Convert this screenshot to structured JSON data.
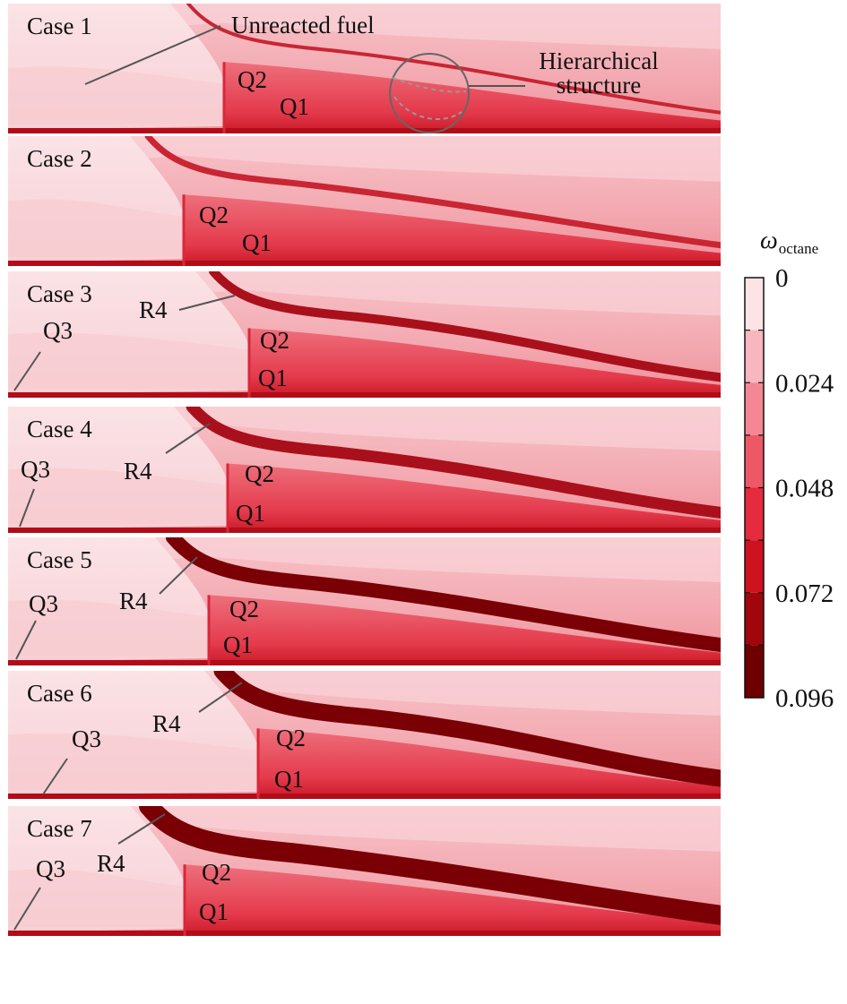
{
  "panels": [
    {
      "case": "Case 1",
      "labels": {
        "q1": "Q1",
        "q2": "Q2"
      },
      "annotations": [
        "Unreacted fuel",
        "Hierarchical",
        "structure"
      ]
    },
    {
      "case": "Case 2",
      "labels": {
        "q1": "Q1",
        "q2": "Q2"
      }
    },
    {
      "case": "Case 3",
      "labels": {
        "q1": "Q1",
        "q2": "Q2",
        "q3": "Q3",
        "r4": "R4"
      }
    },
    {
      "case": "Case 4",
      "labels": {
        "q1": "Q1",
        "q2": "Q2",
        "q3": "Q3",
        "r4": "R4"
      }
    },
    {
      "case": "Case 5",
      "labels": {
        "q1": "Q1",
        "q2": "Q2",
        "q3": "Q3",
        "r4": "R4"
      }
    },
    {
      "case": "Case 6",
      "labels": {
        "q1": "Q1",
        "q2": "Q2",
        "q3": "Q3",
        "r4": "R4"
      }
    },
    {
      "case": "Case 7",
      "labels": {
        "q1": "Q1",
        "q2": "Q2",
        "q3": "Q3",
        "r4": "R4"
      }
    }
  ],
  "colorbar": {
    "title_symbol": "ω",
    "title_subscript": "octane",
    "ticks": [
      "0",
      "0.024",
      "0.048",
      "0.072",
      "0.096"
    ],
    "colors": [
      "#fce4e6",
      "#f8b6bf",
      "#f48793",
      "#ee5866",
      "#e52b3d",
      "#cf1220",
      "#a0060c",
      "#6e0000"
    ]
  }
}
